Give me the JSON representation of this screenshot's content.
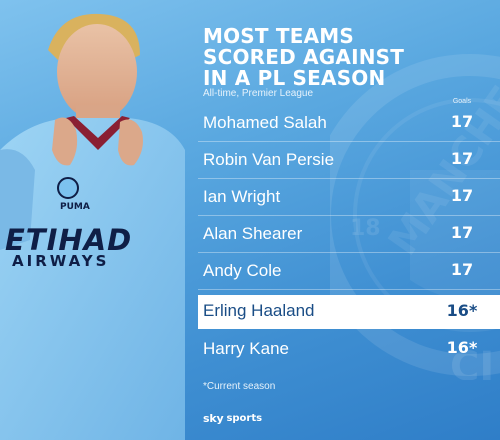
{
  "graphic": {
    "title_lines": [
      "MOST TEAMS",
      "SCORED AGAINST",
      "IN A PL SEASON"
    ],
    "subtitle": "All-time, Premier League",
    "column_header": "Goals",
    "footnote": "*Current season",
    "brand": {
      "sky": "sky",
      "sports": "sports"
    },
    "rows": [
      {
        "name": "Mohamed Salah",
        "goals": "17",
        "highlight": false
      },
      {
        "name": "Robin Van Persie",
        "goals": "17",
        "highlight": false
      },
      {
        "name": "Ian Wright",
        "goals": "17",
        "highlight": false
      },
      {
        "name": "Alan Shearer",
        "goals": "17",
        "highlight": false
      },
      {
        "name": "Andy Cole",
        "goals": "17",
        "highlight": false
      },
      {
        "name": "Erling Haaland",
        "goals": "16*",
        "highlight": true
      },
      {
        "name": "Harry Kane",
        "goals": "16*",
        "highlight": false
      }
    ]
  },
  "photo": {
    "sponsor": "ETIHAD",
    "sponsor_sub": "AIRWAYS",
    "kit_brand": "PUMA"
  },
  "watermark": {
    "crest_text": "MANCHESTER CITY",
    "year": "18",
    "partial": "CI"
  },
  "colors": {
    "background_top": "#7fc2ee",
    "background_bottom": "#2f7ec8",
    "highlight_row": "#ffffff",
    "highlight_text": "#1a4d86",
    "shirt_blue": "#8ccbf0",
    "navy": "#0f1e46",
    "maroon": "#8a1f33"
  }
}
